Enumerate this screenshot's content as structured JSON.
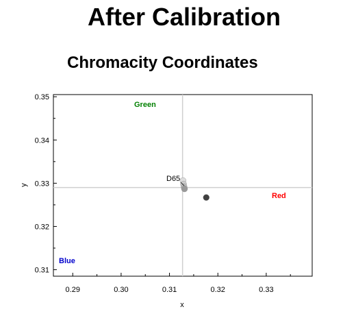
{
  "header": {
    "title": "After Calibration"
  },
  "chart_data": {
    "type": "scatter",
    "title": "Chromacity Coordinates",
    "xlabel": "x",
    "ylabel": "y",
    "xlim": [
      0.286,
      0.3395
    ],
    "ylim": [
      0.3085,
      0.3505
    ],
    "xticks": [
      {
        "value": 0.29,
        "label": "0.29"
      },
      {
        "value": 0.3,
        "label": "0.30"
      },
      {
        "value": 0.31,
        "label": "0.31"
      },
      {
        "value": 0.32,
        "label": "0.32"
      },
      {
        "value": 0.33,
        "label": "0.33"
      }
    ],
    "yticks": [
      {
        "value": 0.31,
        "label": "0.31"
      },
      {
        "value": 0.32,
        "label": "0.32"
      },
      {
        "value": 0.33,
        "label": "0.33"
      },
      {
        "value": 0.34,
        "label": "0.34"
      },
      {
        "value": 0.35,
        "label": "0.35"
      }
    ],
    "reference": {
      "label": "D65",
      "x": 0.3127,
      "y": 0.329
    },
    "points": [
      {
        "x": 0.3128,
        "y": 0.3306,
        "color": "#dddddd"
      },
      {
        "x": 0.3129,
        "y": 0.3298,
        "color": "#cccccc"
      },
      {
        "x": 0.313,
        "y": 0.3292,
        "color": "#bbbbbb"
      },
      {
        "x": 0.3131,
        "y": 0.3287,
        "color": "#999999"
      },
      {
        "x": 0.3176,
        "y": 0.3267,
        "color": "#404040"
      }
    ],
    "corner_labels": [
      {
        "text": "Green",
        "color": "#008000"
      },
      {
        "text": "Red",
        "color": "#ff0000"
      },
      {
        "text": "Blue",
        "color": "#0000cc"
      }
    ],
    "grid": false
  }
}
